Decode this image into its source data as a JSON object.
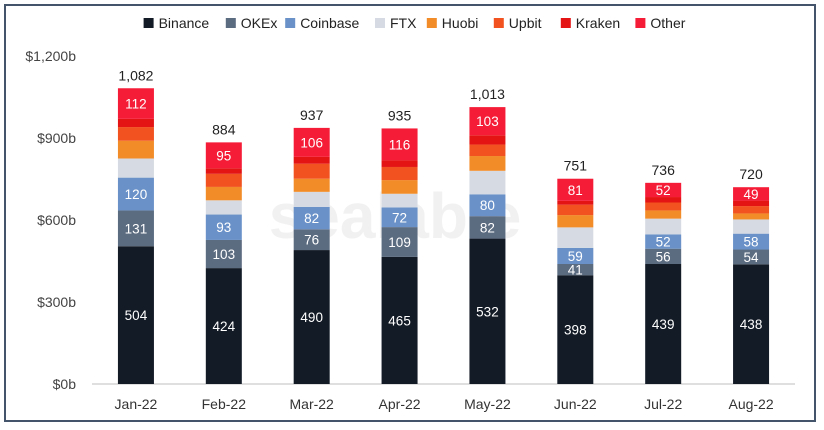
{
  "watermark": "sealable",
  "chart_data": {
    "type": "bar",
    "stacked": true,
    "categories": [
      "Jan-22",
      "Feb-22",
      "Mar-22",
      "Apr-22",
      "May-22",
      "Jun-22",
      "Jul-22",
      "Aug-22"
    ],
    "series": [
      {
        "name": "Binance",
        "color": "#131b26",
        "values": [
          504,
          424,
          490,
          465,
          532,
          398,
          439,
          438
        ],
        "labels": [
          "504",
          "424",
          "490",
          "465",
          "532",
          "398",
          "439",
          "438"
        ]
      },
      {
        "name": "OKEx",
        "color": "#5b6b80",
        "values": [
          131,
          103,
          76,
          109,
          82,
          41,
          56,
          54
        ],
        "labels": [
          "131",
          "103",
          "76",
          "109",
          "82",
          "41",
          "56",
          "54"
        ]
      },
      {
        "name": "Coinbase",
        "color": "#6a92c9",
        "values": [
          120,
          93,
          82,
          72,
          80,
          59,
          52,
          58
        ],
        "labels": [
          "120",
          "93",
          "82",
          "72",
          "80",
          "59",
          "52",
          "58"
        ]
      },
      {
        "name": "FTX",
        "color": "#d6dbe3",
        "values": [
          70,
          52,
          55,
          50,
          86,
          75,
          58,
          52
        ],
        "labels": []
      },
      {
        "name": "Huobi",
        "color": "#f28c28",
        "values": [
          65,
          49,
          48,
          50,
          54,
          45,
          30,
          22
        ],
        "labels": []
      },
      {
        "name": "Upbit",
        "color": "#f2521f",
        "values": [
          50,
          48,
          55,
          48,
          42,
          38,
          29,
          27
        ],
        "labels": []
      },
      {
        "name": "Kraken",
        "color": "#e41414",
        "values": [
          30,
          20,
          25,
          25,
          34,
          14,
          20,
          20
        ],
        "labels": []
      },
      {
        "name": "Other",
        "color": "#f51c37",
        "values": [
          112,
          95,
          106,
          116,
          103,
          81,
          52,
          49
        ],
        "labels": [
          "112",
          "95",
          "106",
          "116",
          "103",
          "81",
          "52",
          "49"
        ]
      }
    ],
    "totals": [
      "1,082",
      "884",
      "937",
      "935",
      "1,013",
      "751",
      "736",
      "720"
    ],
    "ylim": [
      0,
      1200
    ],
    "yticks": [
      {
        "value": 0,
        "label": "$0b"
      },
      {
        "value": 300,
        "label": "$300b"
      },
      {
        "value": 600,
        "label": "$600b"
      },
      {
        "value": 900,
        "label": "$900b"
      },
      {
        "value": 1200,
        "label": "$1,200b"
      }
    ],
    "legend_position": "top",
    "grid": false,
    "title": "",
    "xlabel": "",
    "ylabel": ""
  }
}
